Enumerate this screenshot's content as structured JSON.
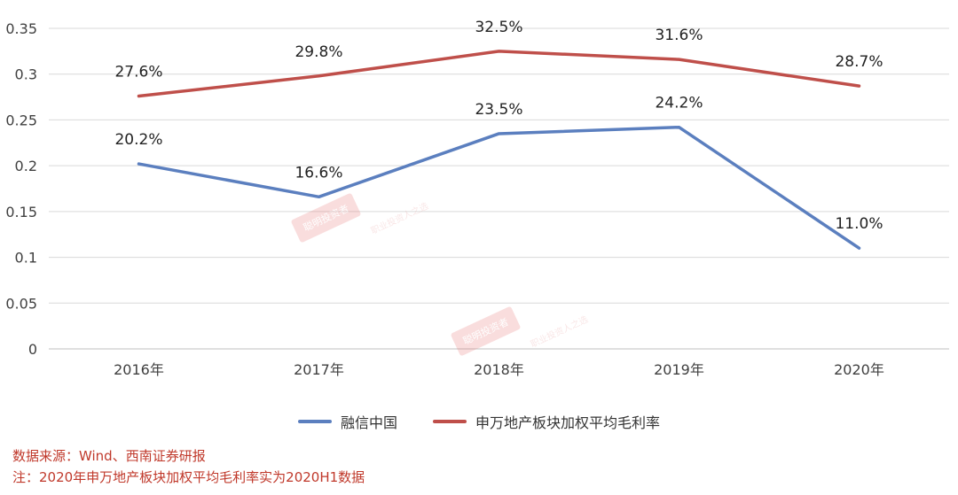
{
  "chart_data": {
    "type": "line",
    "categories": [
      "2016年",
      "2017年",
      "2018年",
      "2019年",
      "2020年"
    ],
    "ylim": [
      0,
      0.35
    ],
    "yticks": [
      "0",
      "0.05",
      "0.1",
      "0.15",
      "0.2",
      "0.25",
      "0.3",
      "0.35"
    ],
    "grid": true,
    "legend_position": "bottom",
    "series": [
      {
        "name": "融信中国",
        "values": [
          0.202,
          0.166,
          0.235,
          0.242,
          0.11
        ],
        "labels": [
          "20.2%",
          "16.6%",
          "23.5%",
          "24.2%",
          "11.0%"
        ],
        "color": "#5b7fbf"
      },
      {
        "name": "申万地产板块加权平均毛利率",
        "values": [
          0.276,
          0.298,
          0.325,
          0.316,
          0.287
        ],
        "labels": [
          "27.6%",
          "29.8%",
          "32.5%",
          "31.6%",
          "28.7%"
        ],
        "color": "#bf4f4a"
      }
    ]
  },
  "notes": {
    "source": "数据来源：Wind、西南证券研报",
    "footnote": "注：2020年申万地产板块加权平均毛利率实为2020H1数据"
  }
}
